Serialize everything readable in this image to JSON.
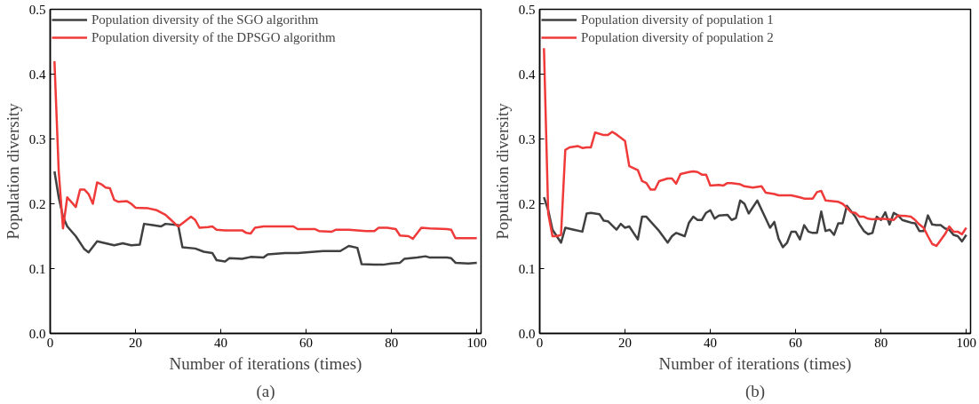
{
  "chart_data": [
    {
      "type": "line",
      "xlabel": "Number of iterations (times)",
      "ylabel": "Population diversity",
      "annotations": [
        "(a)"
      ],
      "xlim": [
        0,
        101
      ],
      "ylim": [
        0,
        0.5
      ],
      "xticks": [
        0,
        20,
        40,
        60,
        80,
        100
      ],
      "yticks": [
        {
          "value": 0,
          "label": "0.0"
        },
        0.1,
        0.2,
        0.3,
        0.4,
        0.5
      ],
      "legend": "top left",
      "grid": false,
      "marker": "none",
      "line_style": "solid",
      "series": [
        {
          "name": "Population diversity of the SGO algorithm",
          "color": "#404040",
          "x": [
            1,
            2,
            3,
            4,
            6,
            8,
            9,
            11,
            13,
            15,
            17,
            19,
            21,
            22,
            24,
            26,
            27,
            30,
            31,
            34,
            36,
            38,
            39,
            41,
            42,
            45,
            47,
            50,
            51,
            55,
            58,
            60,
            64,
            68,
            70,
            72,
            73,
            76,
            78,
            80,
            82,
            83,
            86,
            88,
            89,
            93,
            94,
            95,
            98,
            100
          ],
          "values": [
            0.25,
            0.21,
            0.18,
            0.165,
            0.15,
            0.13,
            0.125,
            0.142,
            0.139,
            0.136,
            0.139,
            0.136,
            0.137,
            0.169,
            0.167,
            0.165,
            0.169,
            0.167,
            0.133,
            0.131,
            0.126,
            0.124,
            0.113,
            0.111,
            0.116,
            0.115,
            0.118,
            0.117,
            0.122,
            0.124,
            0.124,
            0.125,
            0.127,
            0.127,
            0.135,
            0.132,
            0.107,
            0.106,
            0.106,
            0.108,
            0.109,
            0.115,
            0.117,
            0.119,
            0.117,
            0.117,
            0.116,
            0.109,
            0.108,
            0.109
          ]
        },
        {
          "name": "Population diversity of the DPSGO algorithm",
          "color": "#f03a3a",
          "x": [
            1,
            2,
            3,
            4,
            6,
            7,
            8,
            9,
            10,
            11,
            12,
            13,
            14,
            15,
            16,
            18,
            19,
            20,
            23,
            25,
            27,
            28,
            30,
            31,
            33,
            34,
            35,
            37,
            38,
            39,
            41,
            45,
            46,
            47,
            48,
            50,
            55,
            57,
            58,
            62,
            63,
            66,
            67,
            70,
            74,
            76,
            77,
            79,
            81,
            82,
            84,
            85,
            87,
            89,
            93,
            94,
            95,
            97,
            100
          ],
          "values": [
            0.42,
            0.25,
            0.162,
            0.21,
            0.195,
            0.222,
            0.222,
            0.215,
            0.2,
            0.233,
            0.23,
            0.225,
            0.224,
            0.206,
            0.203,
            0.204,
            0.2,
            0.194,
            0.193,
            0.19,
            0.183,
            0.177,
            0.165,
            0.17,
            0.18,
            0.175,
            0.163,
            0.164,
            0.165,
            0.16,
            0.159,
            0.159,
            0.155,
            0.154,
            0.163,
            0.165,
            0.165,
            0.165,
            0.161,
            0.161,
            0.158,
            0.157,
            0.16,
            0.16,
            0.158,
            0.158,
            0.163,
            0.163,
            0.161,
            0.151,
            0.15,
            0.146,
            0.163,
            0.162,
            0.161,
            0.16,
            0.147,
            0.147,
            0.147
          ]
        }
      ]
    },
    {
      "type": "line",
      "xlabel": "Number of iterations (times)",
      "ylabel": "Population diversity",
      "annotations": [
        "(b)"
      ],
      "xlim": [
        0,
        101
      ],
      "ylim": [
        0,
        0.5
      ],
      "xticks": [
        0,
        20,
        40,
        60,
        80,
        100
      ],
      "yticks": [
        {
          "value": 0,
          "label": "0.0"
        },
        0.1,
        0.2,
        0.3,
        0.4,
        0.5
      ],
      "legend": "top left",
      "grid": false,
      "marker": "none",
      "line_style": "solid",
      "series": [
        {
          "name": "Population diversity of population 1",
          "color": "#404040",
          "x": [
            1,
            2,
            3,
            4,
            5,
            6,
            8,
            10,
            11,
            12,
            14,
            15,
            16,
            18,
            19,
            20,
            21,
            23,
            24,
            25,
            28,
            30,
            31,
            32,
            34,
            35,
            36,
            37,
            38,
            39,
            40,
            41,
            42,
            44,
            45,
            46,
            47,
            48,
            49,
            51,
            53,
            54,
            55,
            56,
            57,
            58,
            59,
            60,
            61,
            62,
            63,
            64,
            65,
            66,
            67,
            68,
            69,
            70,
            71,
            72,
            74,
            75,
            76,
            77,
            78,
            79,
            80,
            81,
            82,
            83,
            84,
            85,
            86,
            87,
            88,
            89,
            90,
            91,
            92,
            93,
            94,
            95,
            96,
            97,
            98,
            99,
            100
          ],
          "values": [
            0.21,
            0.19,
            0.16,
            0.15,
            0.14,
            0.163,
            0.16,
            0.157,
            0.185,
            0.186,
            0.184,
            0.174,
            0.173,
            0.16,
            0.169,
            0.163,
            0.165,
            0.145,
            0.18,
            0.18,
            0.158,
            0.14,
            0.15,
            0.155,
            0.15,
            0.171,
            0.18,
            0.175,
            0.175,
            0.186,
            0.19,
            0.177,
            0.182,
            0.183,
            0.175,
            0.178,
            0.205,
            0.2,
            0.185,
            0.205,
            0.177,
            0.163,
            0.172,
            0.146,
            0.133,
            0.14,
            0.157,
            0.157,
            0.145,
            0.167,
            0.157,
            0.155,
            0.155,
            0.188,
            0.158,
            0.16,
            0.152,
            0.17,
            0.17,
            0.197,
            0.18,
            0.168,
            0.158,
            0.153,
            0.155,
            0.18,
            0.175,
            0.187,
            0.168,
            0.186,
            0.182,
            0.175,
            0.173,
            0.171,
            0.17,
            0.158,
            0.158,
            0.182,
            0.168,
            0.167,
            0.167,
            0.162,
            0.16,
            0.152,
            0.15,
            0.142,
            0.152
          ]
        },
        {
          "name": "Population diversity of population 2",
          "color": "#f03a3a",
          "x": [
            1,
            2,
            3,
            4,
            5,
            6,
            7,
            8,
            9,
            10,
            11,
            12,
            13,
            15,
            16,
            17,
            18,
            20,
            21,
            23,
            24,
            25,
            26,
            27,
            28,
            30,
            31,
            32,
            33,
            35,
            36,
            37,
            38,
            39,
            40,
            42,
            43,
            44,
            45,
            47,
            48,
            50,
            52,
            53,
            55,
            56,
            59,
            61,
            62,
            64,
            65,
            66,
            67,
            70,
            71,
            72,
            73,
            74,
            75,
            76,
            77,
            78,
            80,
            82,
            83,
            84,
            86,
            87,
            88,
            89,
            90,
            91,
            92,
            93,
            95,
            96,
            97,
            98,
            99,
            100
          ],
          "values": [
            0.44,
            0.185,
            0.15,
            0.15,
            0.152,
            0.283,
            0.287,
            0.288,
            0.289,
            0.286,
            0.287,
            0.287,
            0.31,
            0.306,
            0.306,
            0.311,
            0.307,
            0.297,
            0.258,
            0.252,
            0.235,
            0.232,
            0.222,
            0.222,
            0.235,
            0.239,
            0.239,
            0.231,
            0.246,
            0.249,
            0.25,
            0.249,
            0.245,
            0.245,
            0.228,
            0.229,
            0.228,
            0.232,
            0.232,
            0.23,
            0.227,
            0.225,
            0.227,
            0.217,
            0.215,
            0.213,
            0.213,
            0.21,
            0.208,
            0.208,
            0.218,
            0.22,
            0.205,
            0.203,
            0.2,
            0.194,
            0.187,
            0.186,
            0.18,
            0.18,
            0.177,
            0.176,
            0.177,
            0.176,
            0.175,
            0.182,
            0.181,
            0.18,
            0.175,
            0.168,
            0.163,
            0.15,
            0.138,
            0.135,
            0.153,
            0.165,
            0.157,
            0.157,
            0.153,
            0.163
          ]
        }
      ]
    }
  ]
}
